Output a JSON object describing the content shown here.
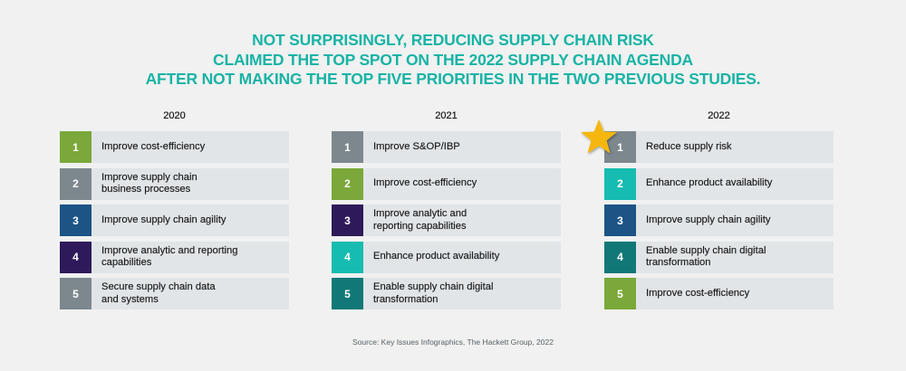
{
  "title": {
    "lines": [
      "NOT SURPRISINGLY, REDUCING SUPPLY CHAIN RISK",
      "CLAIMED THE TOP SPOT ON THE 2022 SUPPLY CHAIN AGENDA",
      "AFTER NOT MAKING THE TOP FIVE PRIORITIES IN THE TWO PREVIOUS STUDIES."
    ],
    "color": "#19b3a6"
  },
  "columns": [
    {
      "year": "2020",
      "items": [
        {
          "rank": "1",
          "label": "Improve cost-efficiency",
          "color": "#7aa83a"
        },
        {
          "rank": "2",
          "label": "Improve supply chain\nbusiness processes",
          "color": "#7d878e"
        },
        {
          "rank": "3",
          "label": "Improve supply chain agility",
          "color": "#1c5486"
        },
        {
          "rank": "4",
          "label": "Improve analytic and reporting\ncapabilities",
          "color": "#2e1a5a"
        },
        {
          "rank": "5",
          "label": "Secure supply chain data\nand systems",
          "color": "#7d878e"
        }
      ]
    },
    {
      "year": "2021",
      "items": [
        {
          "rank": "1",
          "label": "Improve S&OP/IBP",
          "color": "#7d878e"
        },
        {
          "rank": "2",
          "label": "Improve cost-efficiency",
          "color": "#7aa83a"
        },
        {
          "rank": "3",
          "label": "Improve analytic and\nreporting capabilities",
          "color": "#2e1a5a"
        },
        {
          "rank": "4",
          "label": "Enhance product availability",
          "color": "#16bcb0"
        },
        {
          "rank": "5",
          "label": "Enable supply chain digital\ntransformation",
          "color": "#127877"
        }
      ]
    },
    {
      "year": "2022",
      "items": [
        {
          "rank": "1",
          "label": "Reduce supply risk",
          "color": "#7d878e"
        },
        {
          "rank": "2",
          "label": "Enhance product availability",
          "color": "#16bcb0"
        },
        {
          "rank": "3",
          "label": "Improve supply chain agility",
          "color": "#1c5486"
        },
        {
          "rank": "4",
          "label": "Enable supply chain digital\ntransformation",
          "color": "#127877"
        },
        {
          "rank": "5",
          "label": "Improve cost-efficiency",
          "color": "#7aa83a"
        }
      ]
    }
  ],
  "highlight": {
    "icon": "star-icon",
    "color": "#f5b60f"
  },
  "source": "Source: Key Issues Infographics, The Hackett Group, 2022"
}
